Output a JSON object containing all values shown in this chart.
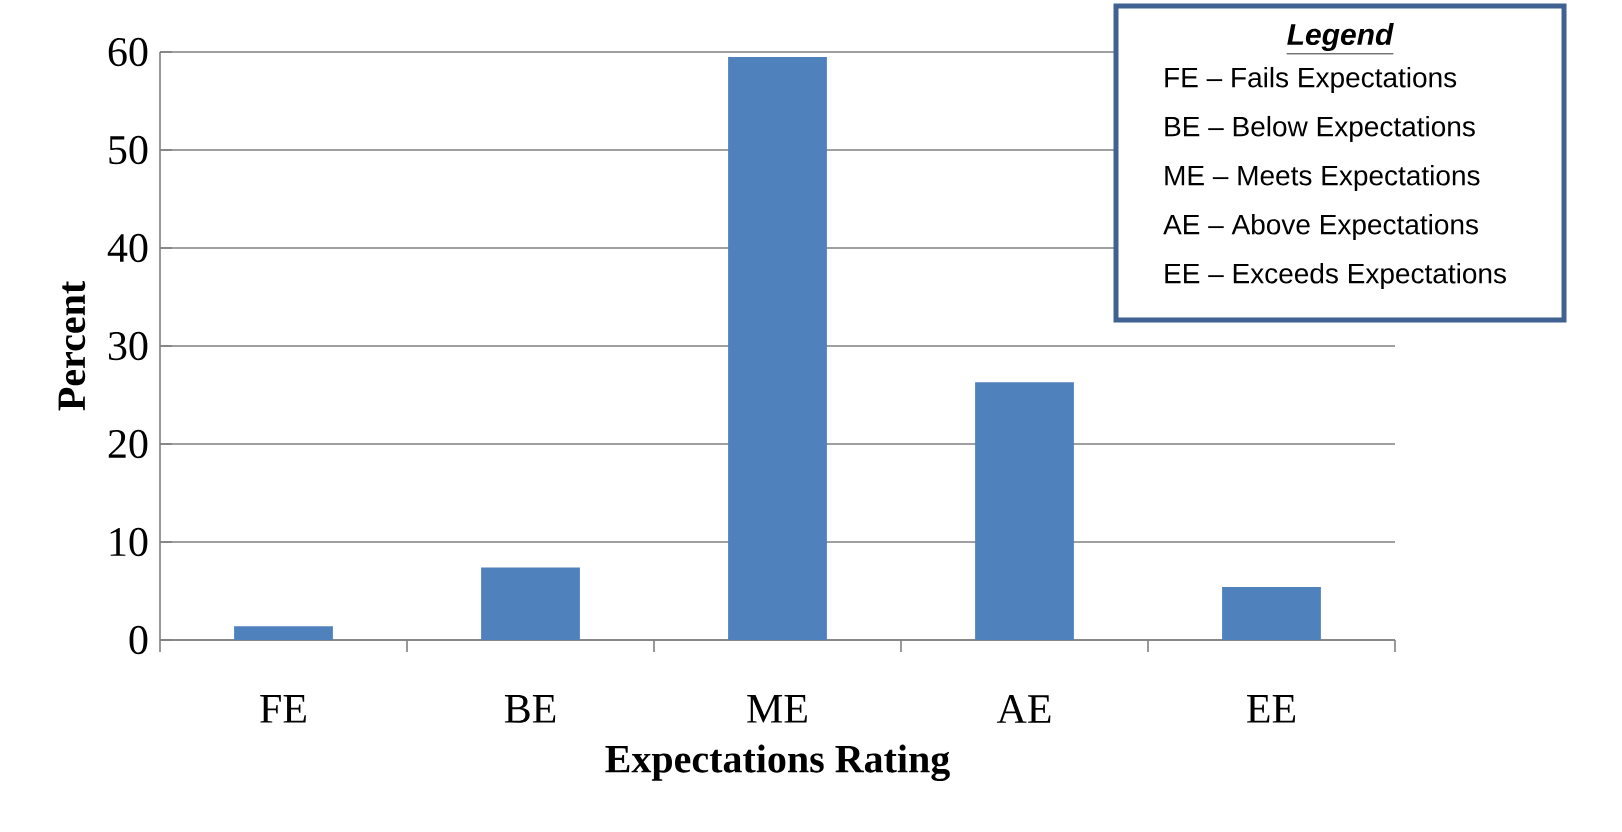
{
  "chart_data": {
    "type": "bar",
    "xlabel": "Expectations Rating",
    "ylabel": "Percent",
    "categories": [
      "FE",
      "BE",
      "ME",
      "AE",
      "EE"
    ],
    "values": [
      1.4,
      7.4,
      59.5,
      26.3,
      5.4
    ],
    "color": "#4f81bd",
    "ylim": [
      0,
      60
    ],
    "yticks": [
      0,
      10,
      20,
      30,
      40,
      50,
      60
    ],
    "grid": "y",
    "annotations": [
      "Legend",
      "FE – Fails Expectations",
      "BE – Below Expectations",
      "ME – Meets Expectations",
      "AE – Above Expectations",
      "EE – Exceeds Expectations"
    ]
  }
}
